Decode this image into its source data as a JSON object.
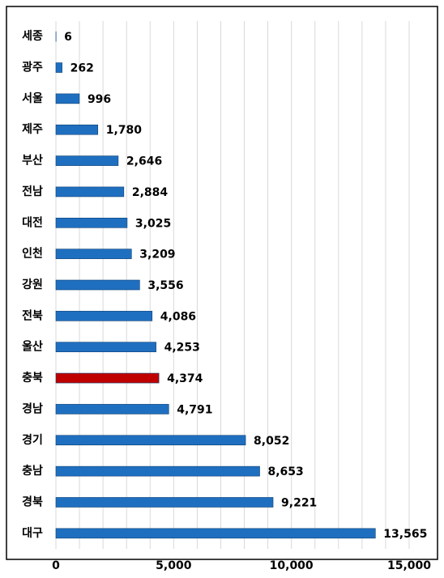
{
  "chart_data": {
    "type": "bar",
    "orientation": "horizontal",
    "categories": [
      "세종",
      "광주",
      "서울",
      "제주",
      "부산",
      "전남",
      "대전",
      "인천",
      "강원",
      "전북",
      "울산",
      "충북",
      "경남",
      "경기",
      "충남",
      "경북",
      "대구"
    ],
    "values": [
      6,
      262,
      996,
      1780,
      2646,
      2884,
      3025,
      3209,
      3556,
      4086,
      4253,
      4374,
      4791,
      8052,
      8653,
      9221,
      13565
    ],
    "value_labels": [
      "6",
      "262",
      "996",
      "1,780",
      "2,646",
      "2,884",
      "3,025",
      "3,209",
      "3,556",
      "4,086",
      "4,253",
      "4,374",
      "4,791",
      "8,052",
      "8,653",
      "9,221",
      "13,565"
    ],
    "colors": [
      "#1f6fc0",
      "#1f6fc0",
      "#1f6fc0",
      "#1f6fc0",
      "#1f6fc0",
      "#1f6fc0",
      "#1f6fc0",
      "#1f6fc0",
      "#1f6fc0",
      "#1f6fc0",
      "#1f6fc0",
      "#c00000",
      "#1f6fc0",
      "#1f6fc0",
      "#1f6fc0",
      "#1f6fc0",
      "#1f6fc0"
    ],
    "xlim": [
      0,
      15000
    ],
    "xticks": [
      0,
      {
        "value": 5000,
        "label": "5,000"
      },
      {
        "value": 10000,
        "label": "10,000"
      },
      {
        "value": 15000,
        "label": "15,000"
      }
    ],
    "xgrid": [
      1000,
      2000,
      3000,
      4000,
      5000,
      6000,
      7000,
      8000,
      9000,
      10000,
      11000,
      12000,
      13000,
      14000,
      15000
    ],
    "grid": true
  }
}
